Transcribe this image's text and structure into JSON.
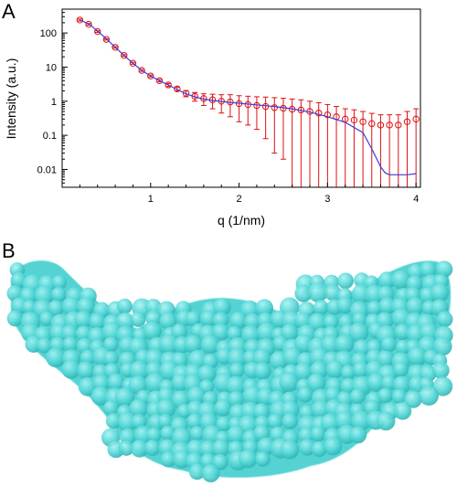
{
  "panel_a": {
    "letter": "A"
  },
  "panel_b": {
    "letter": "B"
  },
  "chart_data": {
    "type": "scatter",
    "title": "",
    "xlabel": "q (1/nm)",
    "ylabel": "Intensity (a.u.)",
    "xlim": [
      0.0,
      4.05
    ],
    "ylim": [
      0.003,
      500
    ],
    "y_scale": "log",
    "x_ticks": [
      1,
      2,
      3,
      4
    ],
    "x_tick_labels": [
      "1",
      "2",
      "3",
      "4"
    ],
    "y_ticks": [
      0.01,
      0.1,
      1,
      10,
      100
    ],
    "y_tick_labels": [
      "0.01",
      "0.1",
      "1",
      "10",
      "100"
    ],
    "grid": false,
    "colors": {
      "data": "#e01010",
      "fit": "#3c3cdc",
      "model": "#5ad8d8"
    },
    "series": [
      {
        "kind": "experimental",
        "marker": "open-circle-with-error-bars",
        "x": [
          0.2,
          0.3,
          0.4,
          0.5,
          0.6,
          0.7,
          0.8,
          0.9,
          1.0,
          1.1,
          1.2,
          1.3,
          1.4,
          1.5,
          1.6,
          1.7,
          1.8,
          1.9,
          2.0,
          2.1,
          2.2,
          2.3,
          2.4,
          2.5,
          2.6,
          2.7,
          2.8,
          2.9,
          3.0,
          3.1,
          3.2,
          3.3,
          3.4,
          3.5,
          3.6,
          3.7,
          3.8,
          3.9,
          4.0
        ],
        "y": [
          240,
          180,
          110,
          65,
          38,
          22,
          13,
          8,
          5.5,
          4,
          3,
          2.3,
          1.7,
          1.4,
          1.2,
          1.1,
          1.0,
          0.95,
          0.85,
          0.8,
          0.75,
          0.7,
          0.65,
          0.62,
          0.58,
          0.55,
          0.5,
          0.45,
          0.4,
          0.35,
          0.3,
          0.28,
          0.25,
          0.22,
          0.2,
          0.2,
          0.2,
          0.25,
          0.3
        ],
        "err": [
          15,
          10,
          6,
          3,
          2,
          1.2,
          0.8,
          0.5,
          0.35,
          0.3,
          0.3,
          0.3,
          0.35,
          0.4,
          0.45,
          0.5,
          0.55,
          0.6,
          0.6,
          0.6,
          0.6,
          0.62,
          0.62,
          0.6,
          0.58,
          0.55,
          0.5,
          0.45,
          0.4,
          0.35,
          0.3,
          0.28,
          0.25,
          0.22,
          0.2,
          0.2,
          0.2,
          0.25,
          0.3
        ]
      },
      {
        "kind": "fit",
        "marker": "line",
        "x": [
          0.2,
          0.3,
          0.4,
          0.5,
          0.6,
          0.7,
          0.8,
          0.9,
          1.0,
          1.1,
          1.2,
          1.3,
          1.4,
          1.5,
          1.6,
          1.7,
          1.8,
          1.9,
          2.0,
          2.2,
          2.4,
          2.6,
          2.8,
          3.0,
          3.2,
          3.4,
          3.5,
          3.6,
          3.65,
          3.7,
          3.8,
          3.9,
          4.0
        ],
        "y": [
          240,
          185,
          115,
          67,
          38,
          22,
          13,
          8,
          5.5,
          4,
          3,
          2.2,
          1.65,
          1.35,
          1.15,
          1.05,
          0.98,
          0.92,
          0.87,
          0.78,
          0.7,
          0.6,
          0.48,
          0.35,
          0.24,
          0.12,
          0.04,
          0.012,
          0.008,
          0.007,
          0.007,
          0.007,
          0.0075
        ]
      }
    ]
  }
}
